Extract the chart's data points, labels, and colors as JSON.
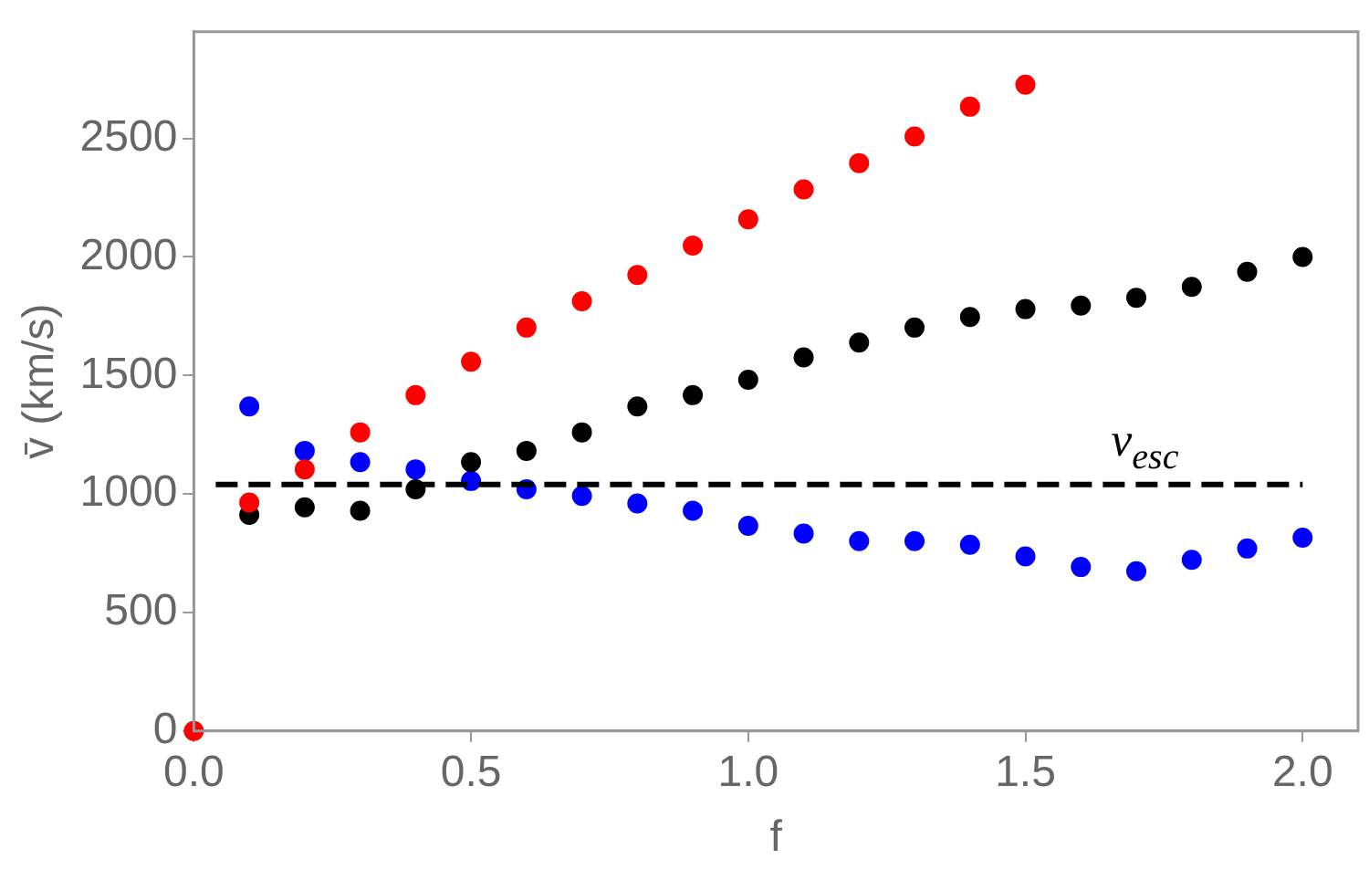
{
  "chart_data": {
    "type": "scatter",
    "xlabel": "f",
    "ylabel": "v̄ (km/s)",
    "xlim": [
      0,
      2.1
    ],
    "ylim": [
      0,
      2950
    ],
    "xticks": [
      {
        "value": 0,
        "label": "0.0"
      },
      {
        "value": 0.5,
        "label": "0.5"
      },
      {
        "value": 1,
        "label": "1.0"
      },
      {
        "value": 1.5,
        "label": "1.5"
      },
      {
        "value": 2,
        "label": "2.0"
      }
    ],
    "yticks": [
      0,
      500,
      1000,
      1500,
      2000,
      2500
    ],
    "grid": false,
    "legend": false,
    "marker": "circle",
    "series": [
      {
        "color": "#ff0000",
        "x": [
          0,
          0.1,
          0.2,
          0.3,
          0.4,
          0.5,
          0.6,
          0.7,
          0.8,
          0.9,
          1.0,
          1.1,
          1.2,
          1.3,
          1.4,
          1.5
        ],
        "values": [
          0,
          964,
          1104,
          1260,
          1417,
          1558,
          1702,
          1813,
          1924,
          2048,
          2159,
          2285,
          2396,
          2508,
          2634,
          2727
        ]
      },
      {
        "color": "#000000",
        "x": [
          0.1,
          0.2,
          0.3,
          0.4,
          0.5,
          0.6,
          0.7,
          0.8,
          0.9,
          1.0,
          1.1,
          1.2,
          1.3,
          1.4,
          1.5,
          1.6,
          1.7,
          1.8,
          1.9,
          2.0
        ],
        "values": [
          912,
          944,
          929,
          1020,
          1134,
          1182,
          1260,
          1369,
          1417,
          1482,
          1576,
          1639,
          1702,
          1747,
          1780,
          1795,
          1828,
          1874,
          1937,
          2000
        ]
      },
      {
        "color": "#0000ff",
        "x": [
          0.1,
          0.2,
          0.3,
          0.4,
          0.5,
          0.6,
          0.7,
          0.8,
          0.9,
          1.0,
          1.1,
          1.2,
          1.3,
          1.4,
          1.5,
          1.6,
          1.7,
          1.8,
          1.9,
          2.0
        ],
        "values": [
          1369,
          1182,
          1134,
          1104,
          1055,
          1020,
          992,
          960,
          929,
          866,
          833,
          801,
          801,
          786,
          737,
          692,
          674,
          722,
          770,
          816
        ]
      }
    ],
    "ref_lines": [
      {
        "axis": "y",
        "value": 1040,
        "label": "v$_{esc}$",
        "color": "#000000",
        "line_style": "dashed"
      }
    ]
  }
}
